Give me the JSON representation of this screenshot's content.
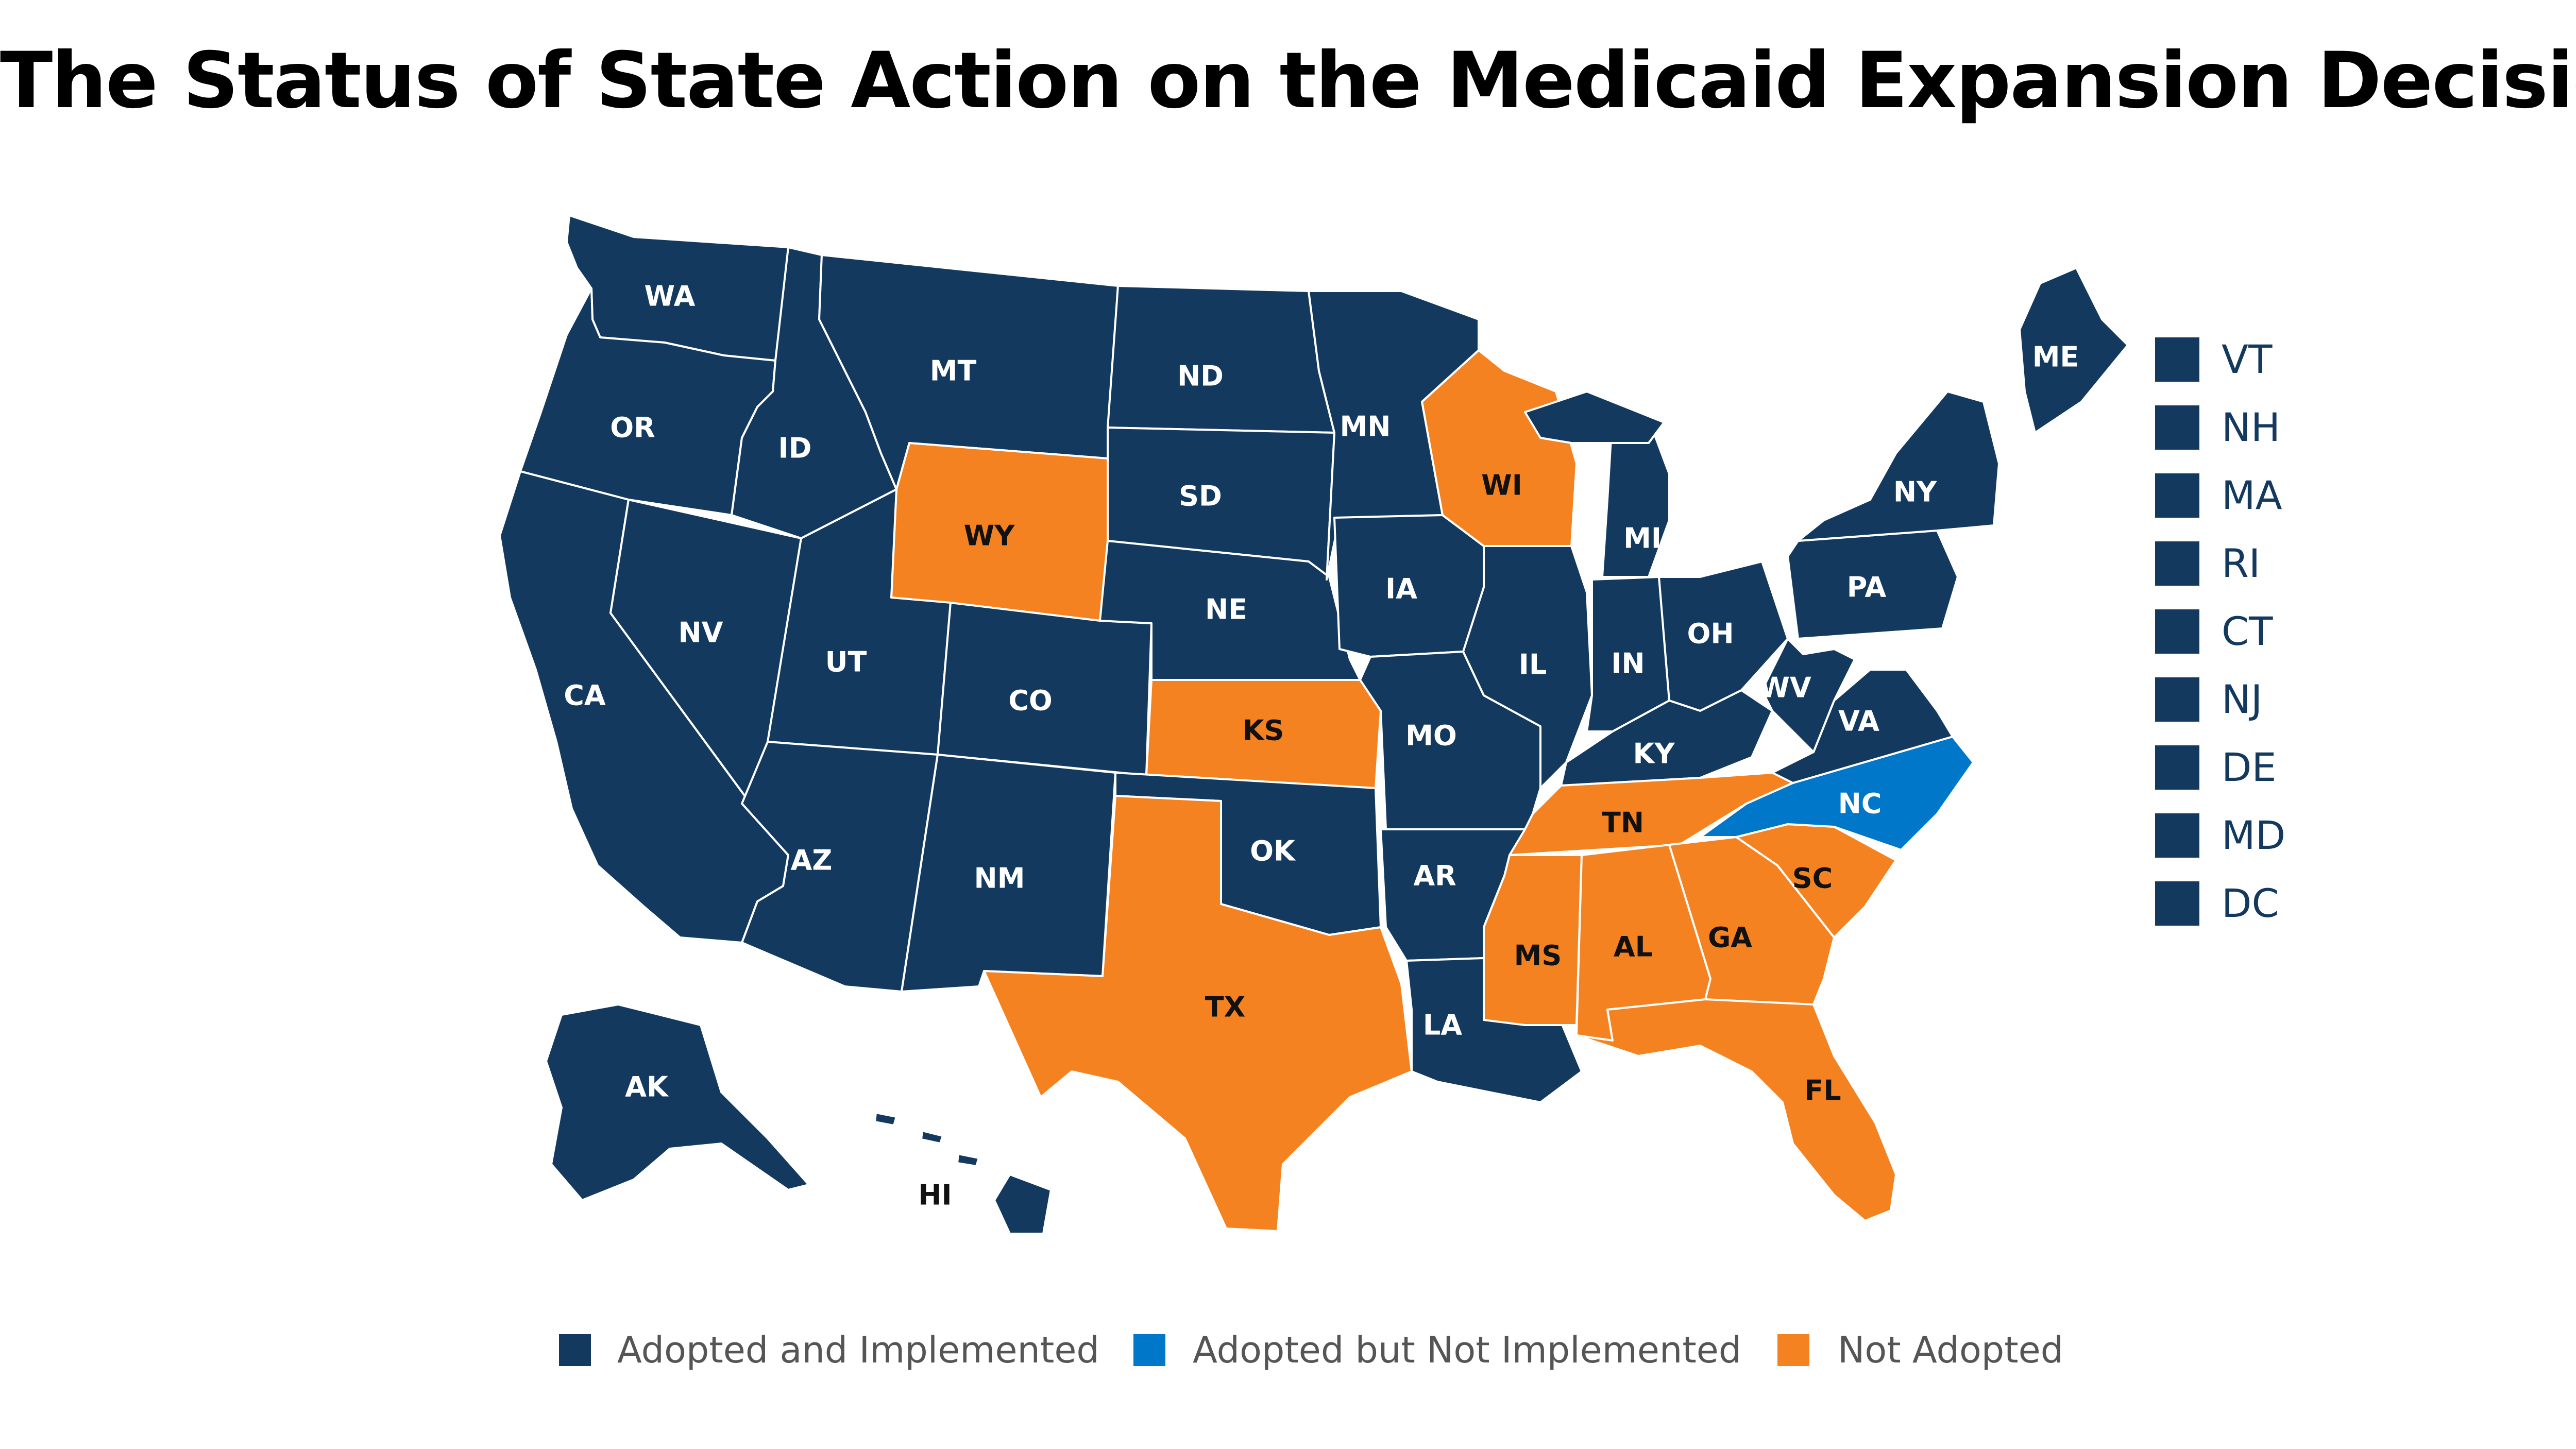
{
  "title": "The Status of State Action on the Medicaid Expansion Decision",
  "colors": {
    "Adopted and Implemented": "#133a5e",
    "Adopted but Not Implemented": "#0077c8",
    "Not Adopted": "#f58220"
  },
  "legend": [
    {
      "label": "Adopted and Implemented",
      "status": "Adopted and Implemented"
    },
    {
      "label": "Adopted but Not Implemented",
      "status": "Adopted but Not Implemented"
    },
    {
      "label": "Not Adopted",
      "status": "Not Adopted"
    }
  ],
  "small_states": [
    {
      "abbr": "VT",
      "status": "Adopted and Implemented"
    },
    {
      "abbr": "NH",
      "status": "Adopted and Implemented"
    },
    {
      "abbr": "MA",
      "status": "Adopted and Implemented"
    },
    {
      "abbr": "RI",
      "status": "Adopted and Implemented"
    },
    {
      "abbr": "CT",
      "status": "Adopted and Implemented"
    },
    {
      "abbr": "NJ",
      "status": "Adopted and Implemented"
    },
    {
      "abbr": "DE",
      "status": "Adopted and Implemented"
    },
    {
      "abbr": "MD",
      "status": "Adopted and Implemented"
    },
    {
      "abbr": "DC",
      "status": "Adopted and Implemented"
    }
  ],
  "states": [
    {
      "abbr": "WA",
      "status": "Adopted and Implemented"
    },
    {
      "abbr": "OR",
      "status": "Adopted and Implemented"
    },
    {
      "abbr": "CA",
      "status": "Adopted and Implemented"
    },
    {
      "abbr": "NV",
      "status": "Adopted and Implemented"
    },
    {
      "abbr": "ID",
      "status": "Adopted and Implemented"
    },
    {
      "abbr": "MT",
      "status": "Adopted and Implemented"
    },
    {
      "abbr": "WY",
      "status": "Not Adopted"
    },
    {
      "abbr": "UT",
      "status": "Adopted and Implemented"
    },
    {
      "abbr": "AZ",
      "status": "Adopted and Implemented"
    },
    {
      "abbr": "CO",
      "status": "Adopted and Implemented"
    },
    {
      "abbr": "NM",
      "status": "Adopted and Implemented"
    },
    {
      "abbr": "ND",
      "status": "Adopted and Implemented"
    },
    {
      "abbr": "SD",
      "status": "Adopted and Implemented"
    },
    {
      "abbr": "NE",
      "status": "Adopted and Implemented"
    },
    {
      "abbr": "KS",
      "status": "Not Adopted"
    },
    {
      "abbr": "OK",
      "status": "Adopted and Implemented"
    },
    {
      "abbr": "TX",
      "status": "Not Adopted"
    },
    {
      "abbr": "MN",
      "status": "Adopted and Implemented"
    },
    {
      "abbr": "IA",
      "status": "Adopted and Implemented"
    },
    {
      "abbr": "MO",
      "status": "Adopted and Implemented"
    },
    {
      "abbr": "AR",
      "status": "Adopted and Implemented"
    },
    {
      "abbr": "LA",
      "status": "Adopted and Implemented"
    },
    {
      "abbr": "WI",
      "status": "Not Adopted"
    },
    {
      "abbr": "IL",
      "status": "Adopted and Implemented"
    },
    {
      "abbr": "MI",
      "status": "Adopted and Implemented"
    },
    {
      "abbr": "IN",
      "status": "Adopted and Implemented"
    },
    {
      "abbr": "OH",
      "status": "Adopted and Implemented"
    },
    {
      "abbr": "KY",
      "status": "Adopted and Implemented"
    },
    {
      "abbr": "TN",
      "status": "Not Adopted"
    },
    {
      "abbr": "MS",
      "status": "Not Adopted"
    },
    {
      "abbr": "AL",
      "status": "Not Adopted"
    },
    {
      "abbr": "GA",
      "status": "Not Adopted"
    },
    {
      "abbr": "FL",
      "status": "Not Adopted"
    },
    {
      "abbr": "SC",
      "status": "Not Adopted"
    },
    {
      "abbr": "NC",
      "status": "Adopted but Not Implemented"
    },
    {
      "abbr": "VA",
      "status": "Adopted and Implemented"
    },
    {
      "abbr": "WV",
      "status": "Adopted and Implemented"
    },
    {
      "abbr": "PA",
      "status": "Adopted and Implemented"
    },
    {
      "abbr": "NY",
      "status": "Adopted and Implemented"
    },
    {
      "abbr": "ME",
      "status": "Adopted and Implemented"
    },
    {
      "abbr": "AK",
      "status": "Adopted and Implemented"
    },
    {
      "abbr": "HI",
      "status": "Adopted and Implemented"
    }
  ]
}
